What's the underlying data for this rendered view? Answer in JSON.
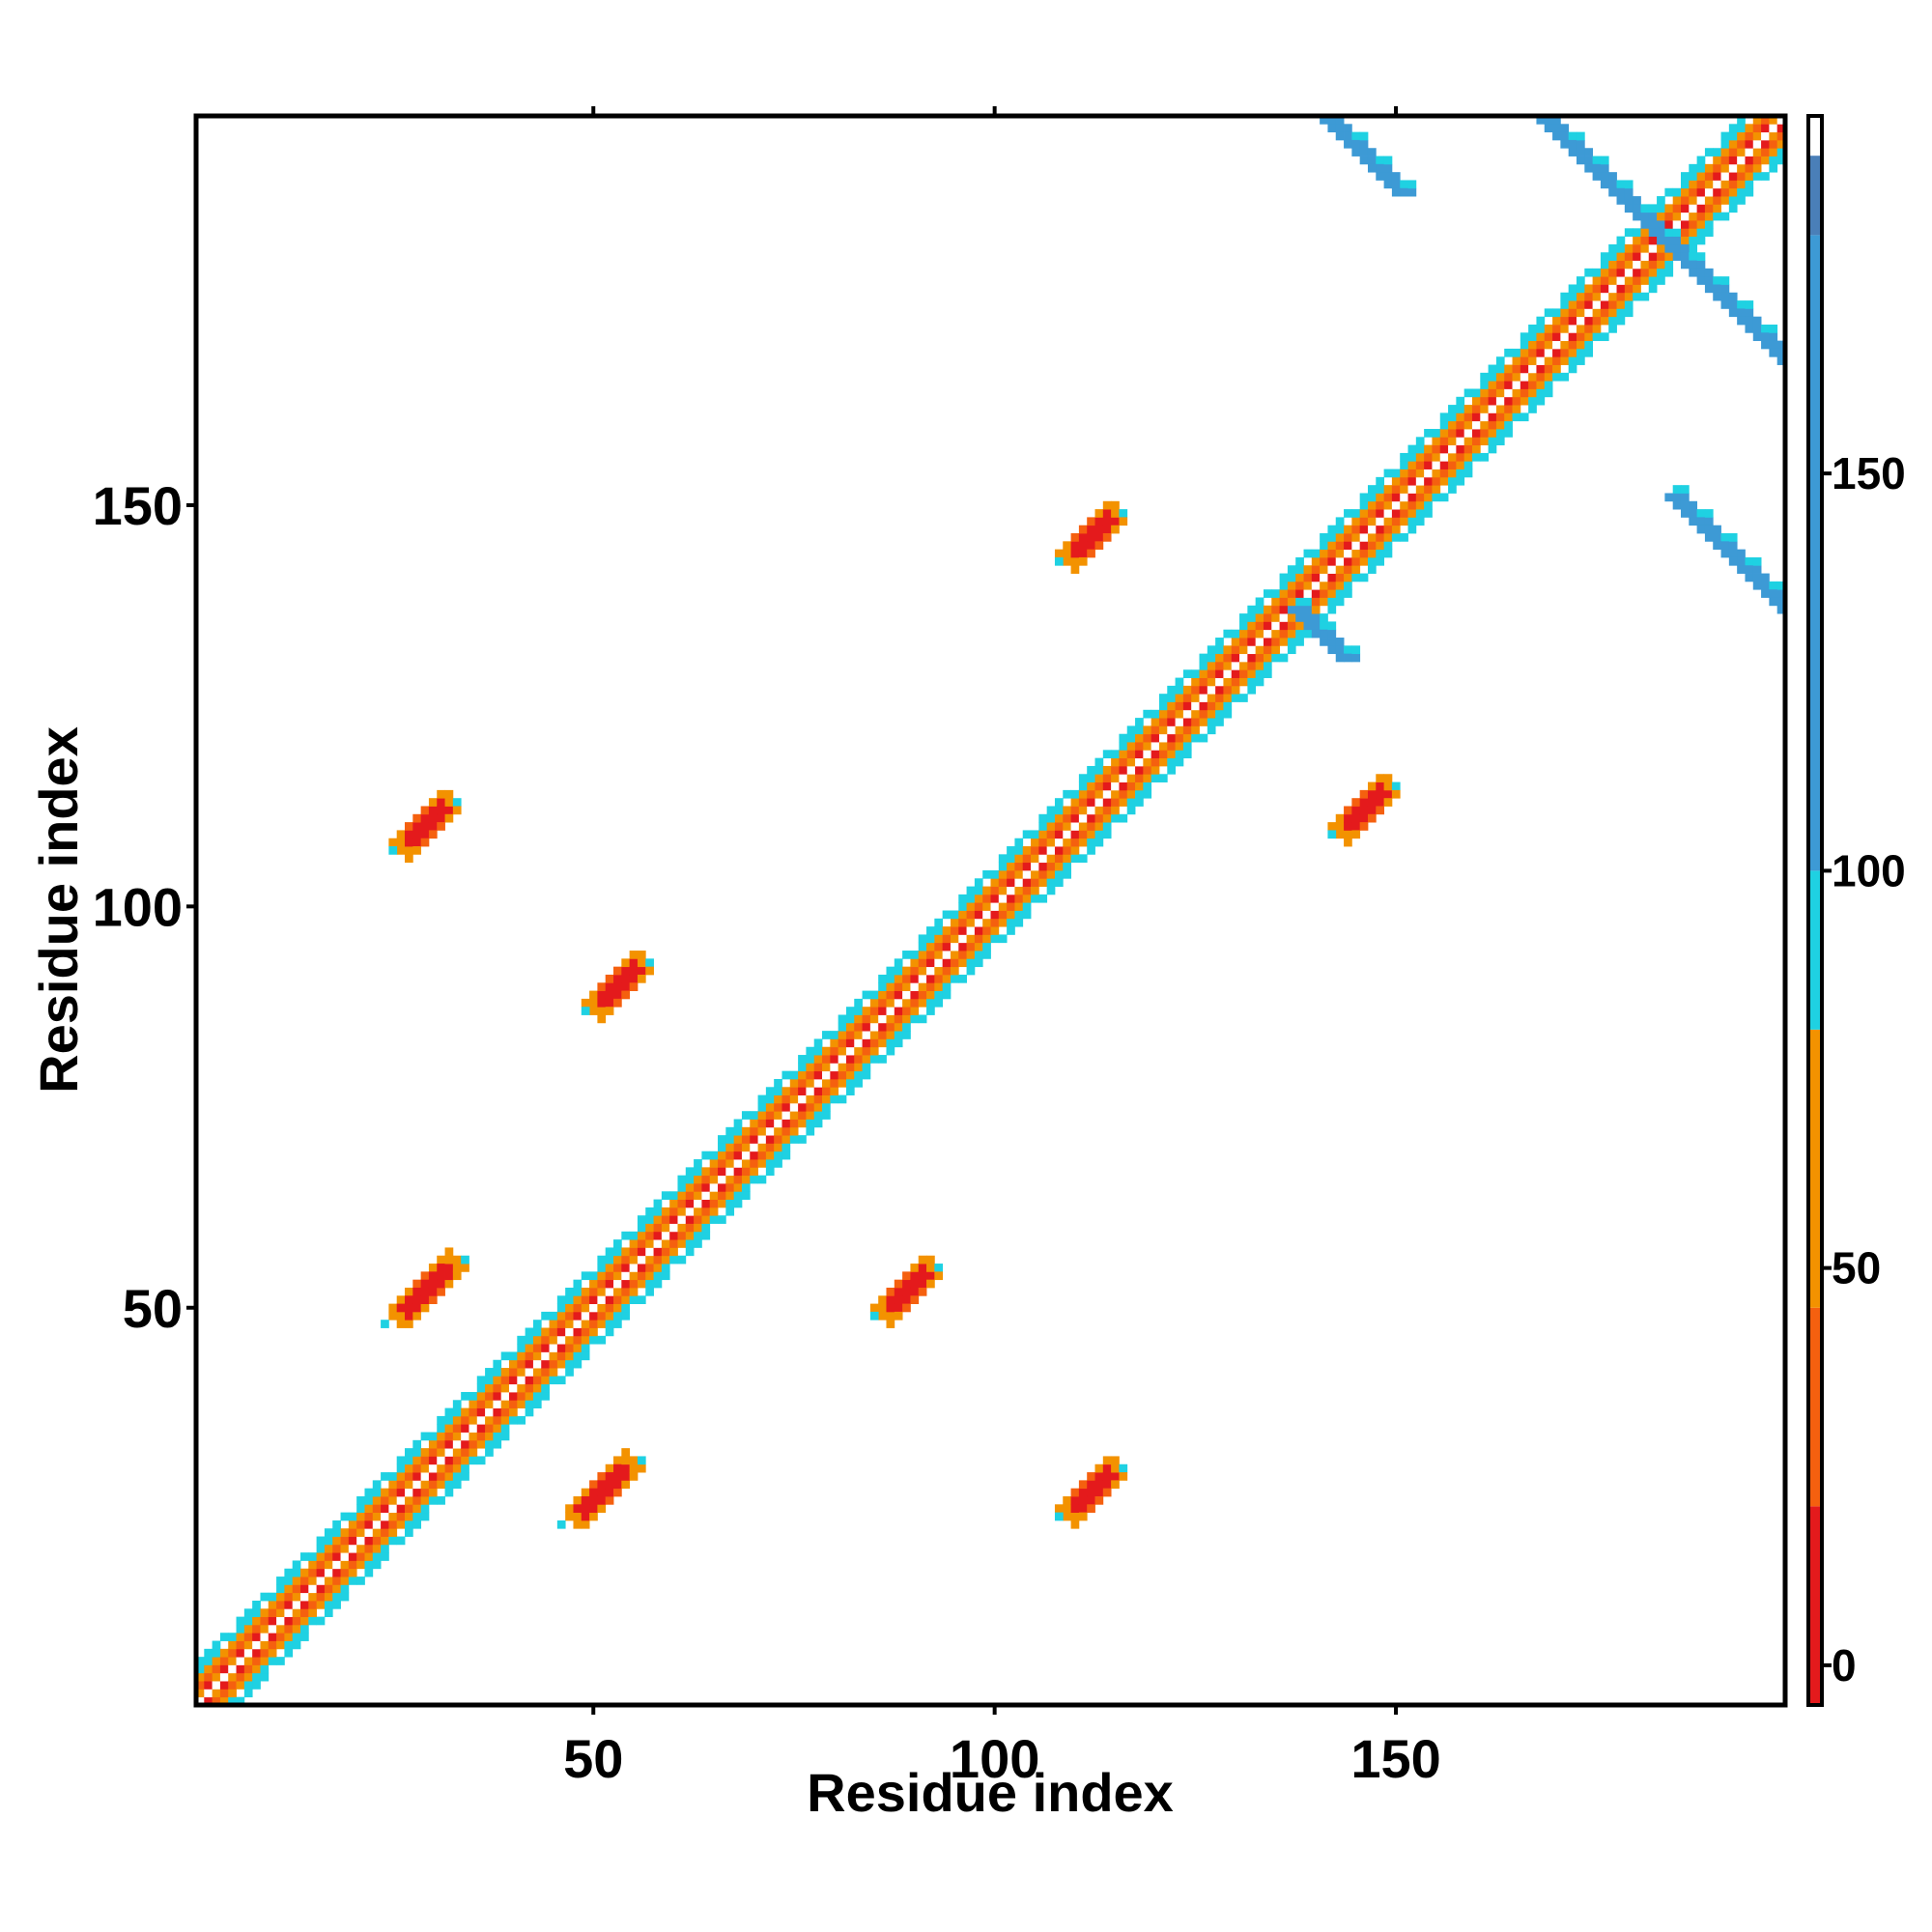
{
  "chart_data": {
    "type": "heatmap",
    "title": "",
    "xlabel": "Residue index",
    "ylabel": "Residue index",
    "xlim": [
      1,
      198
    ],
    "ylim": [
      1,
      198
    ],
    "x_ticks": [
      50,
      100,
      150
    ],
    "y_ticks": [
      50,
      100,
      150
    ],
    "grid": false,
    "colorbar": {
      "range": [
        -5,
        195
      ],
      "ticks": [
        0,
        50,
        100,
        150
      ],
      "bands": [
        {
          "from": -5,
          "to": 20,
          "color": "#e41a1c"
        },
        {
          "from": 20,
          "to": 45,
          "color": "#f5600f"
        },
        {
          "from": 45,
          "to": 80,
          "color": "#f39200"
        },
        {
          "from": 80,
          "to": 100,
          "color": "#1fd1e2"
        },
        {
          "from": 100,
          "to": 180,
          "color": "#3d9ad5"
        },
        {
          "from": 180,
          "to": 190,
          "color": "#4a7fb8"
        },
        {
          "from": 190,
          "to": 195,
          "color": "#ffffff"
        }
      ]
    },
    "regions": [
      {
        "kind": "diag",
        "from": 1,
        "to": 198,
        "half_width": 5,
        "note": "main diagonal band"
      },
      {
        "kind": "anti",
        "from": [
          141,
          198
        ],
        "to": [
          150,
          189
        ],
        "width": 3,
        "value": 150
      },
      {
        "kind": "anti",
        "from": [
          168,
          198
        ],
        "to": [
          198,
          168
        ],
        "width": 3,
        "value": 150
      },
      {
        "kind": "anti",
        "from": [
          184,
          151
        ],
        "to": [
          198,
          137
        ],
        "width": 3,
        "value": 150
      },
      {
        "kind": "anti",
        "from": [
          137,
          137
        ],
        "to": [
          143,
          131
        ],
        "width": 3,
        "value": 110
      },
      {
        "kind": "blob",
        "center": [
          29,
          110
        ],
        "length": 6,
        "width": 2,
        "value": 10
      },
      {
        "kind": "blob",
        "center": [
          53,
          90
        ],
        "length": 6,
        "width": 2,
        "value": 10
      },
      {
        "kind": "blob",
        "center": [
          29,
          52
        ],
        "length": 7,
        "width": 2,
        "value": 10
      },
      {
        "kind": "blob",
        "center": [
          51,
          27
        ],
        "length": 7,
        "width": 2,
        "value": 10
      },
      {
        "kind": "blob",
        "center": [
          89,
          52
        ],
        "length": 6,
        "width": 2,
        "value": 10
      },
      {
        "kind": "blob",
        "center": [
          112,
          27
        ],
        "length": 6,
        "width": 2,
        "value": 10
      },
      {
        "kind": "blob",
        "center": [
          112,
          146
        ],
        "length": 6,
        "width": 2,
        "value": 10
      },
      {
        "kind": "blob",
        "center": [
          146,
          112
        ],
        "length": 6,
        "width": 2,
        "value": 10
      }
    ]
  }
}
